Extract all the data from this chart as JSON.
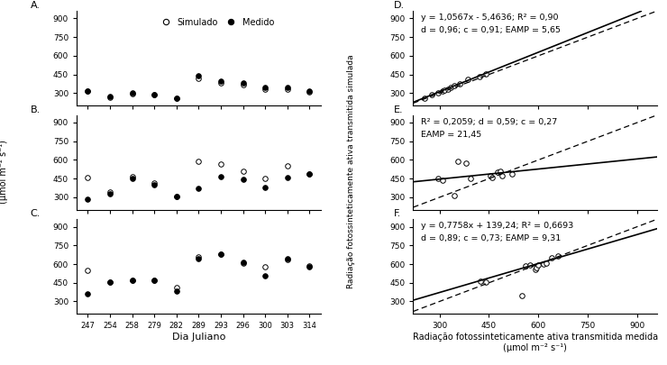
{
  "dias": [
    247,
    254,
    258,
    279,
    282,
    289,
    293,
    296,
    300,
    303,
    314
  ],
  "A_sim": [
    315,
    270,
    295,
    285,
    260,
    420,
    385,
    370,
    335,
    335,
    310
  ],
  "A_med": [
    320,
    275,
    300,
    290,
    260,
    440,
    395,
    380,
    345,
    345,
    315
  ],
  "B_sim": [
    460,
    345,
    465,
    415,
    305,
    590,
    565,
    510,
    455,
    555,
    490
  ],
  "B_med": [
    285,
    330,
    450,
    400,
    305,
    375,
    465,
    445,
    380,
    460,
    490
  ],
  "C_sim": [
    550,
    455,
    468,
    468,
    415,
    658,
    678,
    608,
    578,
    638,
    588
  ],
  "C_med": [
    360,
    455,
    468,
    468,
    380,
    643,
    678,
    618,
    508,
    643,
    578
  ],
  "D_med": [
    255,
    275,
    295,
    310,
    315,
    325,
    335,
    345,
    360,
    385,
    420,
    440
  ],
  "D_sim": [
    260,
    285,
    305,
    320,
    325,
    335,
    348,
    358,
    373,
    408,
    435,
    455
  ],
  "E_med": [
    295,
    310,
    345,
    355,
    380,
    395,
    455,
    460,
    475,
    485,
    490,
    520
  ],
  "E_sim": [
    455,
    435,
    315,
    590,
    575,
    455,
    475,
    460,
    500,
    510,
    475,
    490
  ],
  "F_med": [
    425,
    440,
    550,
    560,
    575,
    590,
    595,
    600,
    615,
    625,
    640,
    660
  ],
  "F_sim": [
    465,
    455,
    345,
    585,
    595,
    560,
    570,
    590,
    600,
    610,
    650,
    665
  ],
  "D_eq": "y = 1,0567x - 5,4636; R² = 0,90",
  "D_eq2": "d = 0,96; c = 0,91; EAMP = 5,65",
  "E_eq": "R² = 0,2059; d = 0,59; c = 0,27",
  "E_eq2": "EAMP = 21,45",
  "F_eq": "y = 0,7758x + 139,24; R² = 0,6693",
  "F_eq2": "d = 0,89; c = 0,73; EAMP = 9,31",
  "ylabel_left": "(μmol m⁻² s⁻¹)",
  "ylabel_right": "Radiação fotossinteticamente ativa transmitida simulada",
  "ylabel_right2": "(μmol m⁻² s⁻¹)",
  "xlabel_left": "Dia Juliano",
  "xlabel_right": "Radiação fotossinteticamente ativa transmitida medida",
  "xlabel_right2": "(μmol m⁻² s⁻¹)",
  "ylim": [
    200,
    960
  ],
  "yticks": [
    300,
    450,
    600,
    750,
    900
  ],
  "xlim_right": [
    220,
    960
  ],
  "xticks_right": [
    300,
    450,
    600,
    750,
    900
  ]
}
